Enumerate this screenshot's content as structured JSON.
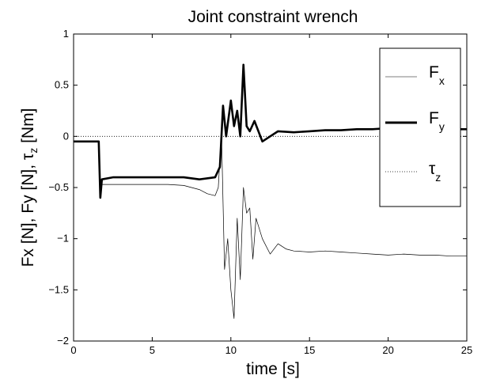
{
  "chart_data": {
    "type": "line",
    "title": "Joint constraint wrench",
    "xlabel": "time [s]",
    "ylabel": {
      "part1": "Fx [N], Fy [N], ",
      "tau": "τ",
      "sub": "z",
      "part2": " [Nm]"
    },
    "xlim": [
      0,
      25
    ],
    "ylim": [
      -2,
      1
    ],
    "xticks": [
      0,
      5,
      10,
      15,
      20,
      25
    ],
    "yticks": [
      -2,
      -1.5,
      -1,
      -0.5,
      0,
      0.5,
      1
    ],
    "xtick_labels": [
      "0",
      "5",
      "10",
      "15",
      "20",
      "25"
    ],
    "ytick_labels": [
      "−2",
      "−1.5",
      "−1",
      "−0.5",
      "0",
      "0.5",
      "1"
    ],
    "grid": false,
    "legend_position": "top-right",
    "series": [
      {
        "name": "F",
        "name_sub": "x",
        "style": "thin-solid",
        "color": "#000000",
        "x": [
          0,
          1.6,
          1.7,
          1.8,
          2.5,
          4,
          6,
          7,
          8,
          8.5,
          9,
          9.2,
          9.4,
          9.6,
          9.8,
          10.0,
          10.2,
          10.4,
          10.6,
          10.8,
          11.0,
          11.2,
          11.4,
          11.6,
          12,
          12.5,
          13,
          13.5,
          14,
          15,
          16,
          17,
          18,
          19,
          20,
          21,
          22,
          23,
          24,
          25
        ],
        "y": [
          -0.05,
          -0.05,
          -0.6,
          -0.47,
          -0.47,
          -0.47,
          -0.47,
          -0.48,
          -0.52,
          -0.56,
          -0.58,
          -0.5,
          0.05,
          -1.3,
          -1.0,
          -1.5,
          -1.78,
          -0.8,
          -1.4,
          -0.5,
          -0.75,
          -0.7,
          -1.2,
          -0.8,
          -1.0,
          -1.15,
          -1.05,
          -1.1,
          -1.12,
          -1.13,
          -1.12,
          -1.13,
          -1.14,
          -1.15,
          -1.16,
          -1.15,
          -1.16,
          -1.16,
          -1.17,
          -1.17
        ]
      },
      {
        "name": "F",
        "name_sub": "y",
        "style": "thick-solid",
        "color": "#000000",
        "x": [
          0,
          1.6,
          1.7,
          1.8,
          2.5,
          4,
          6,
          7,
          8,
          9,
          9.3,
          9.5,
          9.7,
          10.0,
          10.2,
          10.4,
          10.6,
          10.8,
          11.0,
          11.2,
          11.5,
          12,
          12.5,
          13,
          14,
          15,
          16,
          17,
          18,
          19,
          20,
          21,
          22,
          23,
          24,
          25
        ],
        "y": [
          -0.05,
          -0.05,
          -0.6,
          -0.42,
          -0.4,
          -0.4,
          -0.4,
          -0.4,
          -0.42,
          -0.4,
          -0.3,
          0.3,
          0.0,
          0.35,
          0.1,
          0.25,
          0.0,
          0.7,
          0.1,
          0.05,
          0.15,
          -0.05,
          0.0,
          0.05,
          0.04,
          0.05,
          0.06,
          0.06,
          0.07,
          0.07,
          0.08,
          0.07,
          0.07,
          0.07,
          0.07,
          0.07
        ]
      },
      {
        "name": "τ",
        "name_sub": "z",
        "style": "dotted",
        "color": "#000000",
        "x": [
          0,
          25
        ],
        "y": [
          0.0,
          0.0
        ]
      }
    ]
  }
}
